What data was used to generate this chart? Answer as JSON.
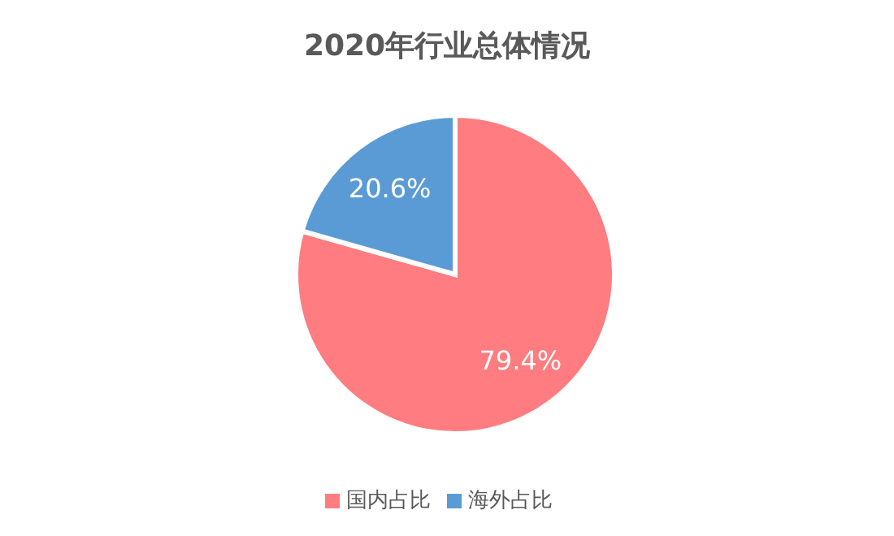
{
  "chart_data": {
    "type": "pie",
    "title": "2020年行业总体情况",
    "categories": [
      "国内占比",
      "海外占比"
    ],
    "values": [
      79.4,
      20.6
    ],
    "colors": [
      "#ff7c80",
      "#5b9bd5"
    ],
    "value_labels": [
      "79.4%",
      "20.6%"
    ],
    "legend": "bottom"
  }
}
